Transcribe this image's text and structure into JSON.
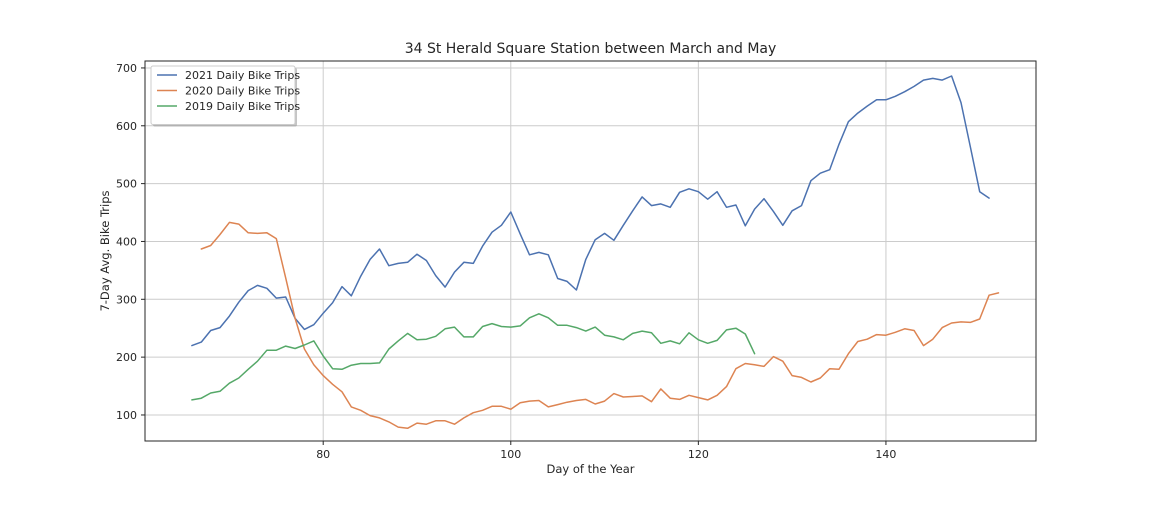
{
  "chart_data": {
    "type": "line",
    "title": "34 St Herald Square Station between March and May",
    "xlabel": "Day of the Year",
    "ylabel": "7-Day Avg. Bike Trips",
    "xlim": [
      61,
      156
    ],
    "ylim": [
      55,
      712
    ],
    "xticks": [
      80,
      100,
      120,
      140
    ],
    "yticks": [
      100,
      200,
      300,
      400,
      500,
      600,
      700
    ],
    "grid": true,
    "legend_position": "top-left",
    "series": [
      {
        "name": "2021 Daily Bike Trips",
        "color": "#4c72b0",
        "x": [
          66,
          67,
          68,
          69,
          70,
          71,
          72,
          73,
          74,
          75,
          76,
          77,
          78,
          79,
          80,
          81,
          82,
          83,
          84,
          85,
          86,
          87,
          88,
          89,
          90,
          91,
          92,
          93,
          94,
          95,
          96,
          97,
          98,
          99,
          100,
          101,
          102,
          103,
          104,
          105,
          106,
          107,
          108,
          109,
          110,
          111,
          112,
          113,
          114,
          115,
          116,
          117,
          118,
          119,
          120,
          121,
          122,
          123,
          124,
          125,
          126,
          127,
          128,
          129,
          130,
          131,
          132,
          133,
          134,
          135,
          136,
          137,
          138,
          139,
          140,
          141,
          142,
          143,
          144,
          145,
          146,
          147,
          148,
          149,
          150,
          151
        ],
        "values": [
          220,
          226,
          246,
          251,
          271,
          295,
          315,
          324,
          319,
          302,
          304,
          267,
          248,
          256,
          276,
          294,
          322,
          306,
          340,
          369,
          387,
          358,
          362,
          364,
          378,
          367,
          341,
          321,
          347,
          364,
          362,
          392,
          416,
          428,
          451,
          413,
          377,
          381,
          377,
          336,
          331,
          316,
          369,
          403,
          414,
          402,
          428,
          453,
          477,
          462,
          465,
          459,
          485,
          491,
          486,
          473,
          486,
          459,
          463,
          427,
          456,
          474,
          452,
          428,
          453,
          462,
          505,
          518,
          524,
          568,
          607,
          622,
          634,
          645,
          645,
          651,
          659,
          668,
          679,
          682,
          679,
          686,
          640,
          564,
          486,
          475
        ]
      },
      {
        "name": "2020 Daily Bike Trips",
        "color": "#dd8452",
        "x": [
          67,
          68,
          69,
          70,
          71,
          72,
          73,
          74,
          75,
          76,
          77,
          78,
          79,
          80,
          81,
          82,
          83,
          84,
          85,
          86,
          87,
          88,
          89,
          90,
          91,
          92,
          93,
          94,
          95,
          96,
          97,
          98,
          99,
          100,
          101,
          102,
          103,
          104,
          105,
          106,
          107,
          108,
          109,
          110,
          111,
          112,
          113,
          114,
          115,
          116,
          117,
          118,
          119,
          120,
          121,
          122,
          123,
          124,
          125,
          126,
          127,
          128,
          129,
          130,
          131,
          132,
          133,
          134,
          135,
          136,
          137,
          138,
          139,
          140,
          141,
          142,
          143,
          144,
          145,
          146,
          147,
          148,
          149,
          150,
          151,
          152
        ],
        "values": [
          387,
          393,
          412,
          433,
          430,
          415,
          414,
          415,
          405,
          337,
          267,
          214,
          187,
          168,
          153,
          140,
          114,
          108,
          99,
          95,
          88,
          79,
          77,
          86,
          84,
          90,
          90,
          84,
          95,
          104,
          108,
          115,
          115,
          110,
          121,
          124,
          125,
          114,
          118,
          122,
          125,
          127,
          119,
          124,
          137,
          131,
          132,
          133,
          123,
          145,
          129,
          127,
          134,
          130,
          126,
          134,
          149,
          180,
          189,
          187,
          184,
          201,
          193,
          168,
          165,
          157,
          164,
          180,
          179,
          206,
          227,
          231,
          239,
          238,
          243,
          249,
          246,
          220,
          231,
          251,
          259,
          261,
          260,
          266,
          307,
          311
        ]
      },
      {
        "name": "2019 Daily Bike Trips",
        "color": "#55a868",
        "x": [
          66,
          67,
          68,
          69,
          70,
          71,
          72,
          73,
          74,
          75,
          76,
          77,
          78,
          79,
          80,
          81,
          82,
          83,
          84,
          85,
          86,
          87,
          88,
          89,
          90,
          91,
          92,
          93,
          94,
          95,
          96,
          97,
          98,
          99,
          100,
          101,
          102,
          103,
          104,
          105,
          106,
          107,
          108,
          109,
          110,
          111,
          112,
          113,
          114,
          115,
          116,
          117,
          118,
          119,
          120,
          121,
          122,
          123,
          124,
          125,
          126
        ],
        "values": [
          126,
          129,
          138,
          141,
          155,
          164,
          179,
          193,
          212,
          212,
          219,
          215,
          221,
          228,
          202,
          180,
          179,
          186,
          189,
          189,
          190,
          214,
          228,
          241,
          230,
          231,
          236,
          249,
          252,
          235,
          235,
          253,
          258,
          253,
          252,
          254,
          268,
          275,
          268,
          255,
          255,
          251,
          245,
          252,
          238,
          235,
          230,
          241,
          245,
          242,
          224,
          228,
          223,
          242,
          230,
          224,
          229,
          247,
          250,
          240,
          206
        ]
      }
    ]
  }
}
